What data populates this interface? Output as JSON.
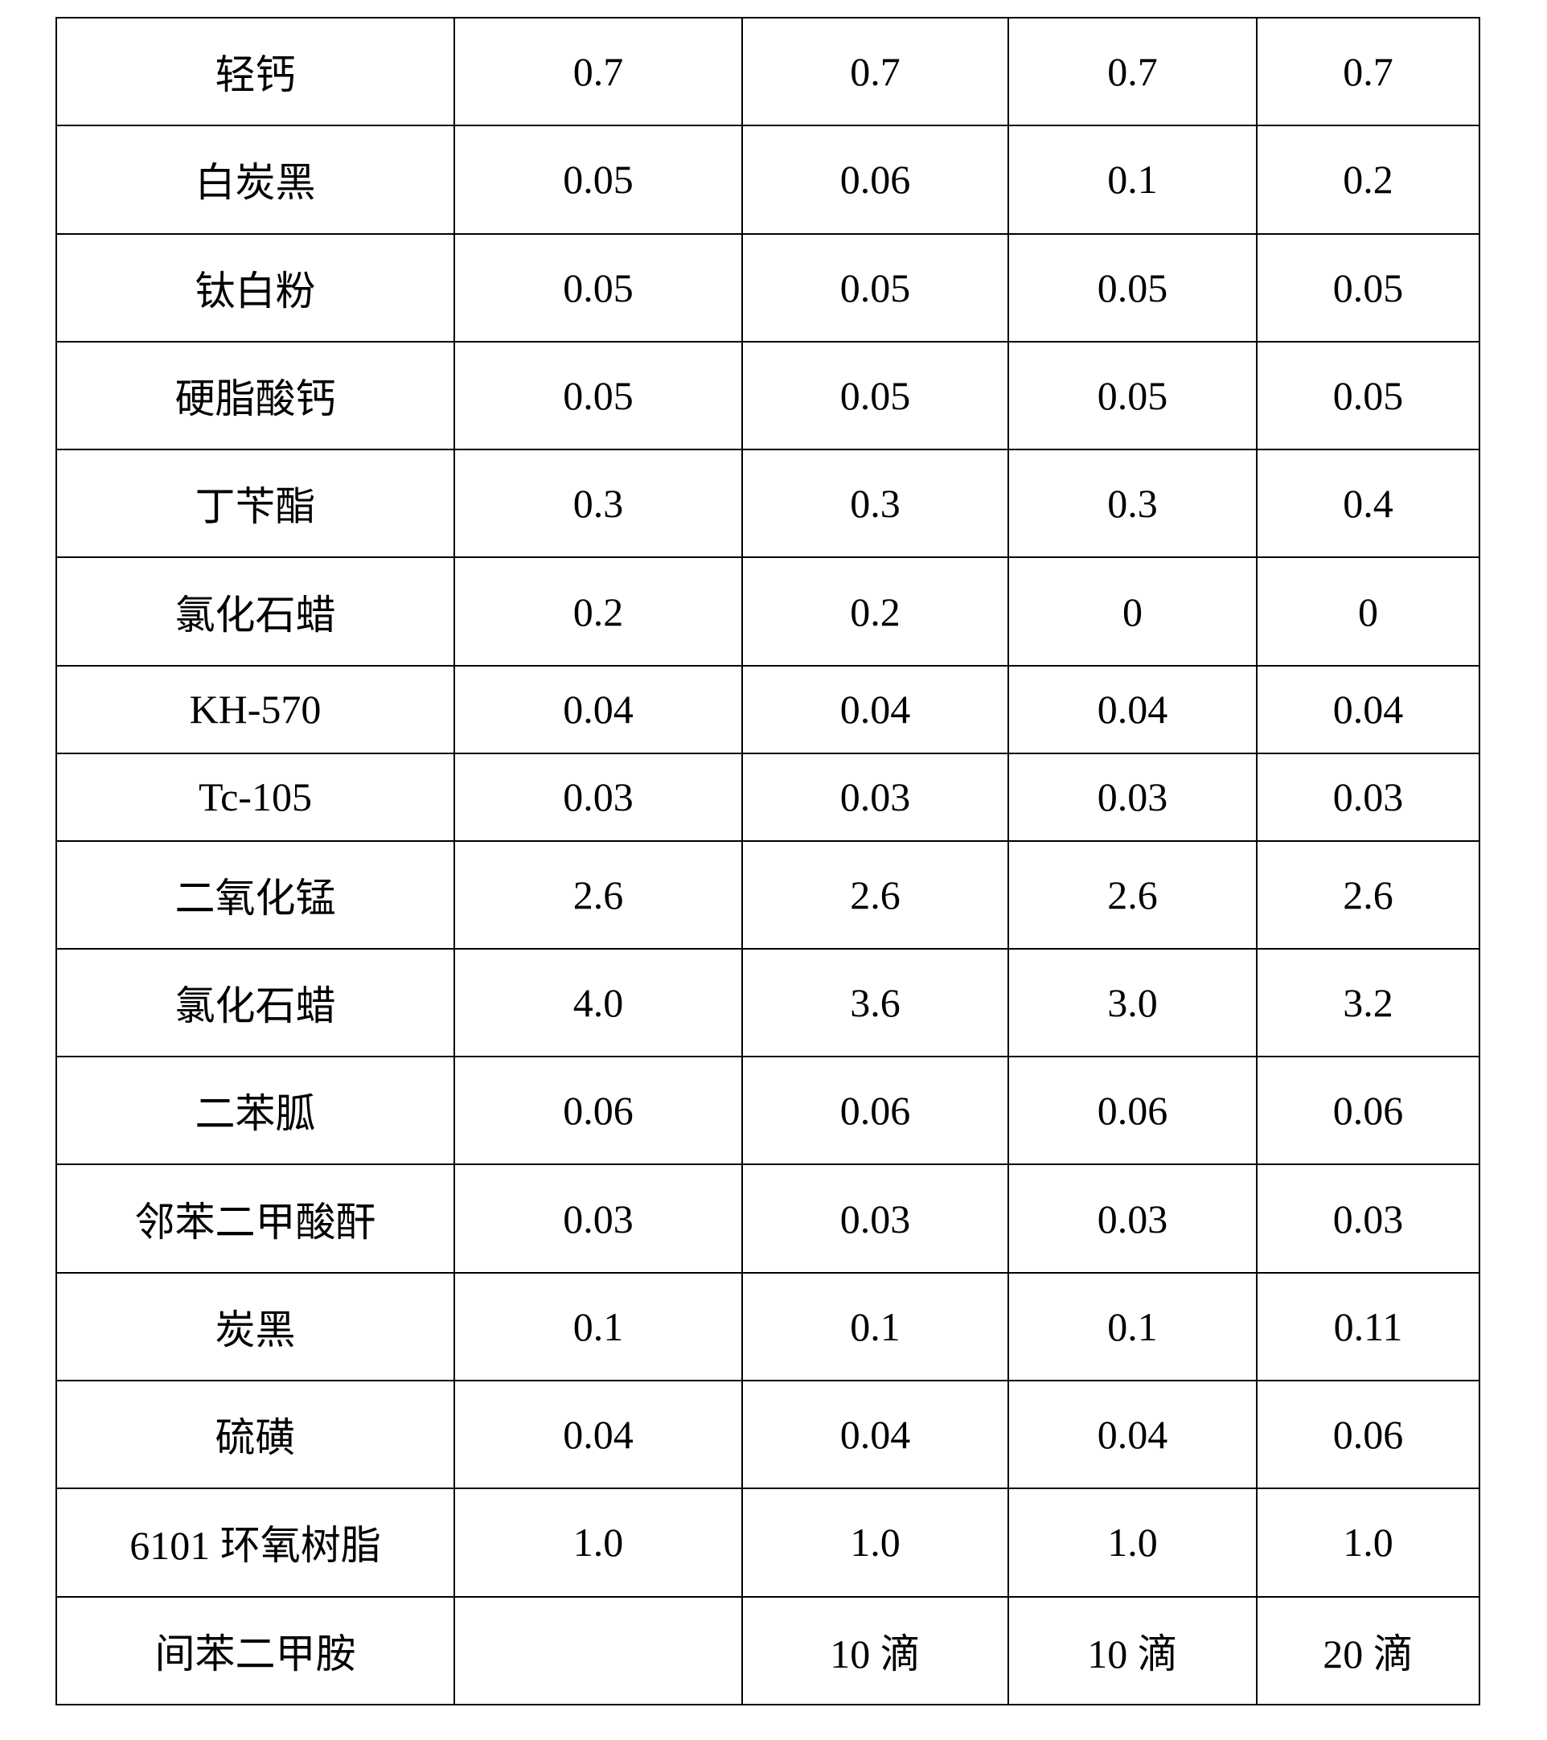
{
  "table": {
    "rows": [
      {
        "name": "轻钙",
        "values": [
          "0.7",
          "0.7",
          "0.7",
          "0.7"
        ]
      },
      {
        "name": "白炭黑",
        "values": [
          "0.05",
          "0.06",
          "0.1",
          "0.2"
        ]
      },
      {
        "name": "钛白粉",
        "values": [
          "0.05",
          "0.05",
          "0.05",
          "0.05"
        ]
      },
      {
        "name": "硬脂酸钙",
        "values": [
          "0.05",
          "0.05",
          "0.05",
          "0.05"
        ]
      },
      {
        "name": "丁苄酯",
        "values": [
          "0.3",
          "0.3",
          "0.3",
          "0.4"
        ]
      },
      {
        "name": "氯化石蜡",
        "values": [
          "0.2",
          "0.2",
          "0",
          "0"
        ]
      },
      {
        "name": "KH-570",
        "values": [
          "0.04",
          "0.04",
          "0.04",
          "0.04"
        ]
      },
      {
        "name": "Tc-105",
        "values": [
          "0.03",
          "0.03",
          "0.03",
          "0.03"
        ]
      },
      {
        "name": "二氧化锰",
        "values": [
          "2.6",
          "2.6",
          "2.6",
          "2.6"
        ]
      },
      {
        "name": "氯化石蜡",
        "values": [
          "4.0",
          "3.6",
          "3.0",
          "3.2"
        ]
      },
      {
        "name": "二苯胍",
        "values": [
          "0.06",
          "0.06",
          "0.06",
          "0.06"
        ]
      },
      {
        "name": "邻苯二甲酸酐",
        "values": [
          "0.03",
          "0.03",
          "0.03",
          "0.03"
        ]
      },
      {
        "name": "炭黑",
        "values": [
          "0.1",
          "0.1",
          "0.1",
          "0.11"
        ]
      },
      {
        "name": "硫磺",
        "values": [
          "0.04",
          "0.04",
          "0.04",
          "0.06"
        ]
      },
      {
        "name": "6101 环氧树脂",
        "values": [
          "1.0",
          "1.0",
          "1.0",
          "1.0"
        ]
      },
      {
        "name": "间苯二甲胺",
        "values": [
          "",
          "10 滴",
          "10 滴",
          "20 滴"
        ]
      }
    ]
  }
}
